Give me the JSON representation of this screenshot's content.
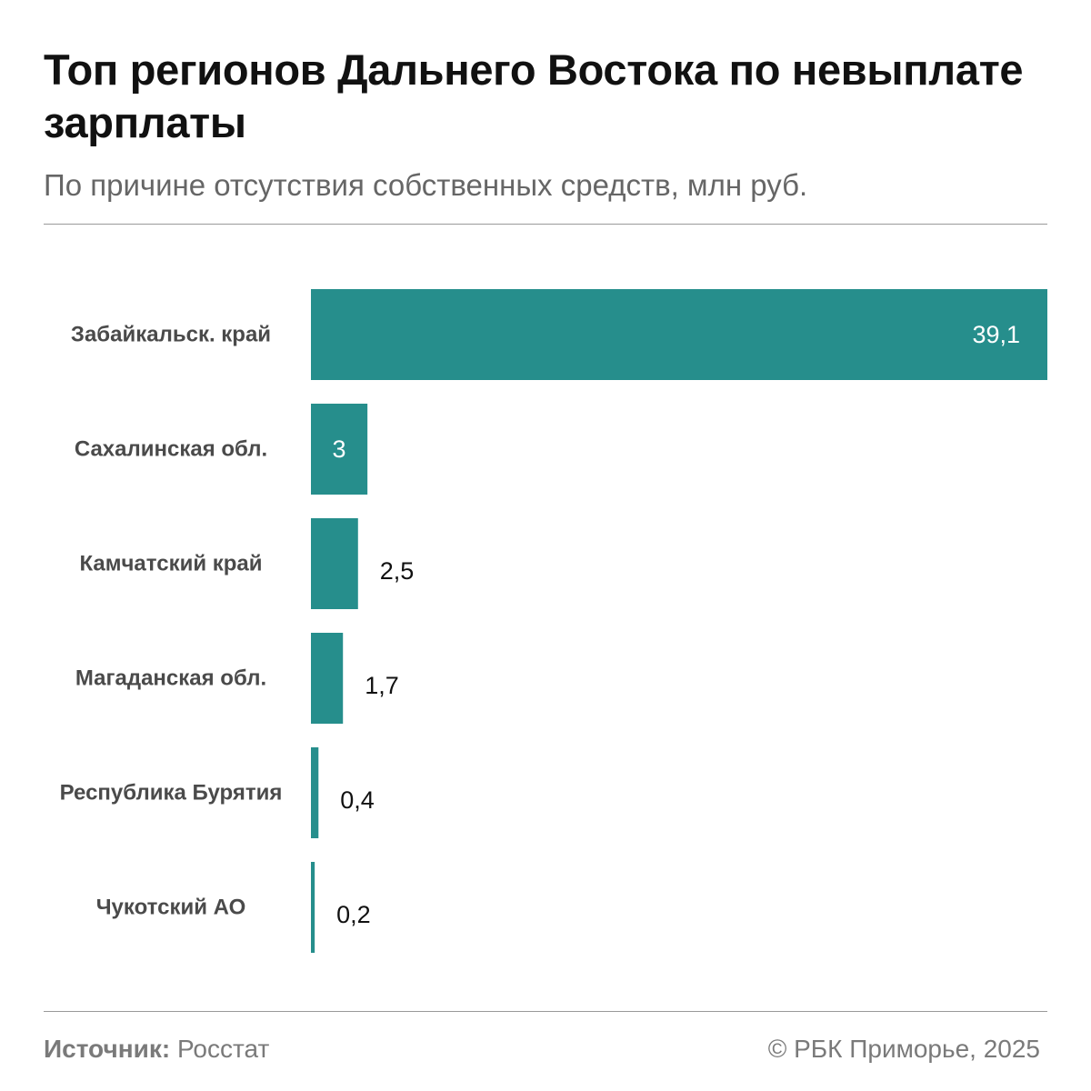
{
  "header": {
    "title": "Топ регионов Дальнего Востока по невыплате зарплаты",
    "subtitle": "По причине отсутствия собственных средств, млн руб."
  },
  "chart_data": {
    "type": "bar",
    "orientation": "horizontal",
    "title": "Топ регионов Дальнего Востока по невыплате зарплаты",
    "subtitle": "По причине отсутствия собственных средств, млн руб.",
    "categories": [
      "Забайкальск. край",
      "Сахалинская обл.",
      "Камчатский край",
      "Магаданская обл.",
      "Республика Бурятия",
      "Чукотский АО"
    ],
    "values": [
      39.1,
      3,
      2.5,
      1.7,
      0.4,
      0.2
    ],
    "value_labels": [
      "39,1",
      "3",
      "2,5",
      "1,7",
      "0,4",
      "0,2"
    ],
    "xlim": [
      0,
      39.1
    ],
    "xlabel": "",
    "ylabel": "",
    "grid": false,
    "legend": false
  },
  "colors": {
    "bar": "#268e8c",
    "value_inside": "#ffffff",
    "value_outside": "#111111"
  },
  "footer": {
    "source_key": "Источник:",
    "source_value": "Росстат",
    "copyright": "© РБК Приморье, 2025"
  }
}
